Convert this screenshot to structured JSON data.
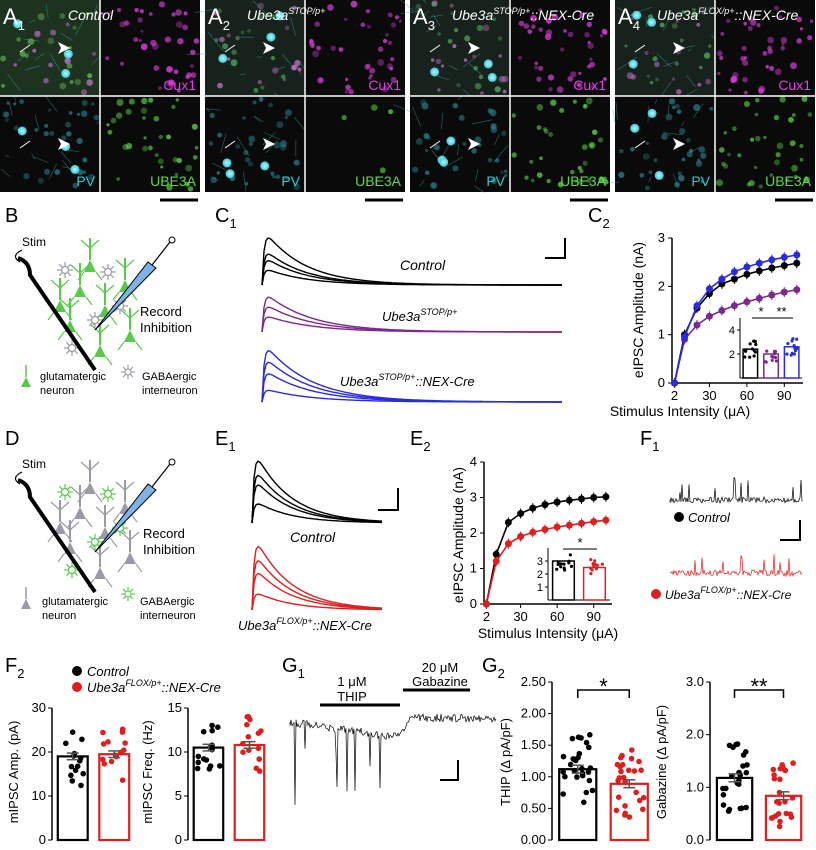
{
  "colors": {
    "control": "#000000",
    "stop": "#7a2a8c",
    "stop_nex": "#2a2ae0",
    "flox_nex": "#dd1f1f",
    "cyan": "#36c9d8",
    "magenta": "#e33fe3",
    "green": "#5fd94a",
    "interneuron_gray": "#9a9aa8"
  },
  "micrographs": {
    "panels": [
      {
        "letter": "A",
        "sub": "1",
        "title": "Control",
        "sup": "",
        "title_suffix": ""
      },
      {
        "letter": "A",
        "sub": "2",
        "title": "Ube3a",
        "sup": "STOP/p+",
        "title_suffix": ""
      },
      {
        "letter": "A",
        "sub": "3",
        "title": "Ube3a",
        "sup": "STOP/p+",
        "title_suffix": "::NEX-Cre"
      },
      {
        "letter": "A",
        "sub": "4",
        "title": "Ube3a",
        "sup": "FLOX/p+",
        "title_suffix": "::NEX-Cre"
      }
    ],
    "labels": {
      "cux1": "Cux1",
      "pv": "PV",
      "ube3a": "UBE3A"
    }
  },
  "B": {
    "letter": "B",
    "stim": "Stim",
    "record": "Record",
    "inhibition": "Inhibition",
    "glut1": "glutamatergic",
    "glut2": "neuron",
    "gaba1": "GABAergic",
    "gaba2": "interneuron"
  },
  "C1": {
    "letter": "C",
    "sub": "1",
    "labels": [
      {
        "main": "Control",
        "sup": "",
        "suffix": ""
      },
      {
        "main": "Ube3a",
        "sup": "STOP/p+",
        "suffix": ""
      },
      {
        "main": "Ube3a",
        "sup": "STOP/p+",
        "suffix": "::NEX-Cre"
      }
    ]
  },
  "C2": {
    "letter": "C",
    "sub": "2",
    "xlabel": "Stimulus Intensity (μA)",
    "ylabel": "eIPSC Amplitude (nA)",
    "xticks": [
      "2",
      "30",
      "60",
      "90"
    ],
    "yticks": [
      "0",
      "1",
      "2",
      "3"
    ],
    "inset_yticks": [
      "2",
      "4"
    ],
    "sig1": "*",
    "sig2": "**"
  },
  "D": {
    "letter": "D",
    "stim": "Stim",
    "record": "Record",
    "inhibition": "Inhibition",
    "glut1": "glutamatergic",
    "glut2": "neuron",
    "gaba1": "GABAergic",
    "gaba2": "interneuron"
  },
  "E1": {
    "letter": "E",
    "sub": "1",
    "labels": [
      {
        "main": "Control",
        "sup": "",
        "suffix": ""
      },
      {
        "main": "Ube3a",
        "sup": "FLOX/p+",
        "suffix": "::NEX-Cre"
      }
    ]
  },
  "E2": {
    "letter": "E",
    "sub": "2",
    "xlabel": "Stimulus Intensity (μA)",
    "ylabel": "eIPSC Amplitude (nA)",
    "xticks": [
      "2",
      "30",
      "60",
      "90"
    ],
    "yticks": [
      "0",
      "1",
      "2",
      "3",
      "4"
    ],
    "inset_yticks": [
      "1",
      "2",
      "3"
    ],
    "sig": "*"
  },
  "F1": {
    "letter": "F",
    "sub": "1",
    "legend": [
      {
        "main": "Control",
        "sup": "",
        "suffix": ""
      },
      {
        "main": "Ube3a",
        "sup": "FLOX/p+",
        "suffix": "::NEX-Cre"
      }
    ]
  },
  "F2": {
    "letter": "F",
    "sub": "2",
    "legend": [
      {
        "main": "Control",
        "sup": "",
        "suffix": ""
      },
      {
        "main": "Ube3a",
        "sup": "FLOX/p+",
        "suffix": "::NEX-Cre"
      }
    ],
    "amp_ylabel": "mIPSC Amp. (pA)",
    "amp_yticks": [
      "0",
      "10",
      "20",
      "30"
    ],
    "freq_ylabel": "mIPSC Freq. (Hz)",
    "freq_yticks": [
      "0",
      "5",
      "10",
      "15"
    ]
  },
  "G1": {
    "letter": "G",
    "sub": "1",
    "thip_dose": "1 μM",
    "thip": "THIP",
    "gab_dose": "20 μM",
    "gab": "Gabazine"
  },
  "G2": {
    "letter": "G",
    "sub": "2",
    "thip_ylabel": "THIP (Δ pA/pF)",
    "thip_yticks": [
      "0.00",
      "0.50",
      "1.00",
      "1.50",
      "2.00",
      "2.50"
    ],
    "gab_ylabel": "Gabazine (Δ pA/pF)",
    "gab_yticks": [
      "0.0",
      "1.0",
      "2.0",
      "3.0"
    ],
    "sig1": "*",
    "sig2": "**"
  },
  "chart_data": [
    {
      "type": "line",
      "panel": "C2",
      "x": [
        2,
        10,
        20,
        30,
        40,
        50,
        60,
        70,
        80,
        90,
        100
      ],
      "series": [
        {
          "name": "Control",
          "values": [
            0,
            1.0,
            1.55,
            1.85,
            2.05,
            2.15,
            2.25,
            2.32,
            2.38,
            2.43,
            2.48
          ]
        },
        {
          "name": "Ube3aSTOP/p+",
          "values": [
            0,
            0.9,
            1.2,
            1.38,
            1.5,
            1.6,
            1.68,
            1.75,
            1.82,
            1.88,
            1.93
          ]
        },
        {
          "name": "Ube3aSTOP/p+::NEX-Cre",
          "values": [
            0,
            0.95,
            1.6,
            1.95,
            2.15,
            2.3,
            2.4,
            2.48,
            2.55,
            2.6,
            2.65
          ]
        }
      ],
      "xlim": [
        0,
        105
      ],
      "ylim": [
        0,
        3
      ],
      "xlabel": "Stimulus Intensity (μA)",
      "ylabel": "eIPSC Amplitude (nA)"
    },
    {
      "type": "bar",
      "panel": "C2-inset",
      "categories": [
        "Control",
        "Ube3aSTOP/p+",
        "Ube3aSTOP/p+::NEX-Cre"
      ],
      "values": [
        2.4,
        2.0,
        2.6
      ],
      "ylim": [
        0,
        5
      ]
    },
    {
      "type": "line",
      "panel": "E2",
      "x": [
        2,
        10,
        20,
        30,
        40,
        50,
        60,
        70,
        80,
        90,
        100
      ],
      "series": [
        {
          "name": "Control",
          "values": [
            0,
            1.4,
            2.3,
            2.55,
            2.7,
            2.8,
            2.87,
            2.92,
            2.96,
            3.0,
            3.02
          ]
        },
        {
          "name": "Ube3aFLOX/p+::NEX-Cre",
          "values": [
            0,
            1.2,
            1.7,
            1.9,
            2.02,
            2.1,
            2.17,
            2.22,
            2.27,
            2.32,
            2.36
          ]
        }
      ],
      "xlim": [
        0,
        105
      ],
      "ylim": [
        0,
        4
      ],
      "xlabel": "Stimulus Intensity (μA)",
      "ylabel": "eIPSC Amplitude (nA)"
    },
    {
      "type": "bar",
      "panel": "E2-inset",
      "categories": [
        "Control",
        "Ube3aFLOX/p+::NEX-Cre"
      ],
      "values": [
        3.0,
        2.5
      ],
      "ylim": [
        0,
        4
      ]
    },
    {
      "type": "bar",
      "panel": "F2-amp",
      "categories": [
        "Control",
        "Ube3aFLOX/p+::NEX-Cre"
      ],
      "values": [
        19,
        19.5
      ],
      "ylim": [
        0,
        30
      ],
      "ylabel": "mIPSC Amp. (pA)"
    },
    {
      "type": "bar",
      "panel": "F2-freq",
      "categories": [
        "Control",
        "Ube3aFLOX/p+::NEX-Cre"
      ],
      "values": [
        10.5,
        10.8
      ],
      "ylim": [
        0,
        15
      ],
      "ylabel": "mIPSC Freq. (Hz)"
    },
    {
      "type": "bar",
      "panel": "G2-thip",
      "categories": [
        "Control",
        "Ube3aFLOX/p+::NEX-Cre"
      ],
      "values": [
        1.12,
        0.89
      ],
      "ylim": [
        0,
        2.5
      ],
      "ylabel": "THIP (Δ pA/pF)"
    },
    {
      "type": "bar",
      "panel": "G2-gabazine",
      "categories": [
        "Control",
        "Ube3aFLOX/p+::NEX-Cre"
      ],
      "values": [
        1.18,
        0.84
      ],
      "ylim": [
        0,
        3
      ],
      "ylabel": "Gabazine (Δ pA/pF)"
    }
  ]
}
